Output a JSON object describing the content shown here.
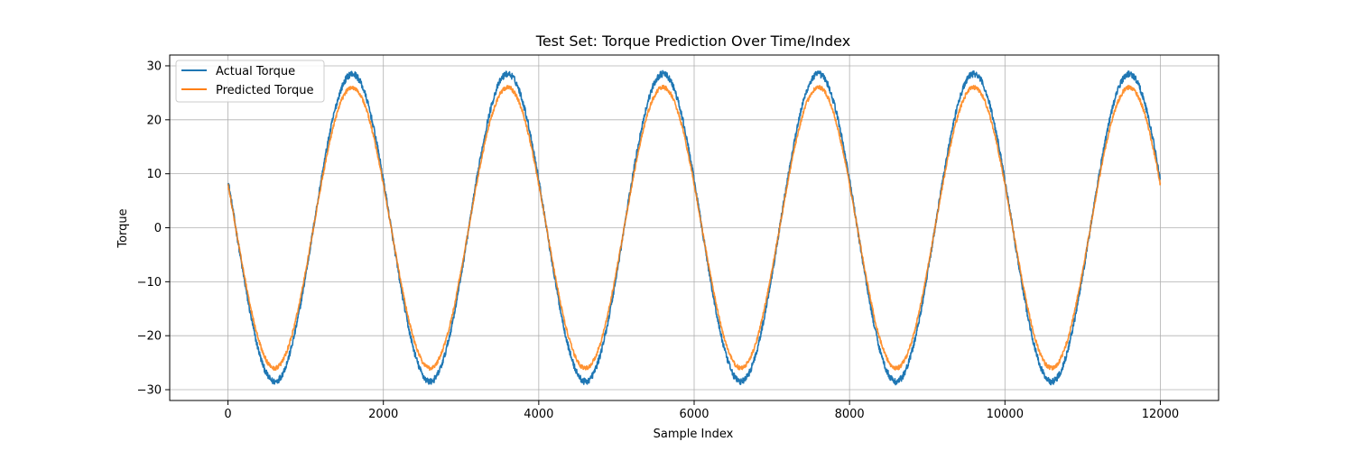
{
  "chart_data": {
    "type": "line",
    "title": "Test Set: Torque Prediction Over Time/Index",
    "xlabel": "Sample Index",
    "ylabel": "Torque",
    "xlim": [
      -750,
      12750
    ],
    "ylim": [
      -32,
      32
    ],
    "xticks": [
      0,
      2000,
      4000,
      6000,
      8000,
      10000,
      12000
    ],
    "yticks": [
      -30,
      -20,
      -10,
      0,
      10,
      20,
      30
    ],
    "grid": true,
    "legend_position": "upper-left",
    "n_points": 12000,
    "period_samples": 2000,
    "series": [
      {
        "name": "Actual Torque",
        "color": "#1f77b4",
        "amplitude": 28.5,
        "value_at_0": 8.5,
        "peaks_x": [
          1600,
          3600,
          5600,
          7600,
          9600,
          11600
        ],
        "troughs_x": [
          600,
          2600,
          4600,
          6600,
          8600,
          10600
        ],
        "noise": 0.6
      },
      {
        "name": "Predicted Torque",
        "color": "#ff7f0e",
        "amplitude": 26,
        "value_at_0": 7.5,
        "peaks_x": [
          1600,
          3600,
          5600,
          7600,
          9600,
          11600
        ],
        "troughs_x": [
          600,
          2600,
          4600,
          6600,
          8600,
          10600
        ],
        "noise": 0.4
      }
    ]
  }
}
